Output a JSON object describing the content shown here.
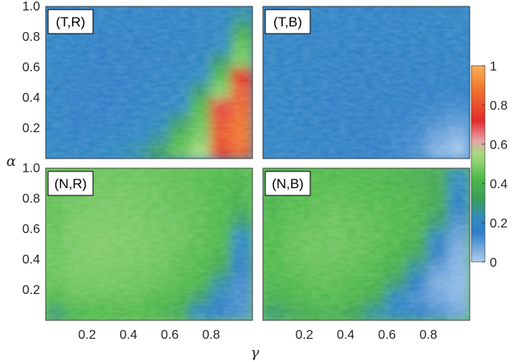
{
  "chart_data": {
    "type": "heatmap",
    "xlabel": "γ",
    "ylabel": "α",
    "x_ticks": [
      "0.2",
      "0.4",
      "0.6",
      "0.8"
    ],
    "y_ticks": [
      "0.2",
      "0.4",
      "0.6",
      "0.8",
      "1.0"
    ],
    "xlim": [
      0,
      1
    ],
    "ylim": [
      0,
      1
    ],
    "colorbar": {
      "range": [
        0,
        1
      ],
      "ticks": [
        "0",
        "0.2",
        "0.4",
        "0.6",
        "0.8",
        "1"
      ],
      "colors": [
        "#aecdf0",
        "#2f7fc6",
        "#2f8ac0",
        "#3a9e5a",
        "#4db848",
        "#a8dc82",
        "#e8a0a8",
        "#e22a2a",
        "#f08030",
        "#f7b060"
      ]
    },
    "panels": [
      {
        "label": "(T,R)",
        "description": "mostly ~0.15-0.2; ridge from gamma≈0.6 (alpha 0) to gamma≈0.95 (alpha 0.85) with values 0.4-0.5, rising to 0.8-0.9 near gamma 0.85-1.0, alpha<0.5",
        "grid": [
          [
            0.2,
            0.18,
            0.2,
            0.22,
            0.25,
            0.32,
            0.45,
            0.55,
            0.75,
            0.85
          ],
          [
            0.18,
            0.15,
            0.17,
            0.18,
            0.2,
            0.25,
            0.4,
            0.48,
            0.82,
            0.88
          ],
          [
            0.18,
            0.15,
            0.15,
            0.17,
            0.18,
            0.22,
            0.3,
            0.45,
            0.8,
            0.87
          ],
          [
            0.18,
            0.15,
            0.15,
            0.15,
            0.17,
            0.2,
            0.22,
            0.42,
            0.7,
            0.85
          ],
          [
            0.17,
            0.15,
            0.15,
            0.15,
            0.16,
            0.18,
            0.2,
            0.3,
            0.5,
            0.82
          ],
          [
            0.17,
            0.15,
            0.15,
            0.15,
            0.15,
            0.17,
            0.18,
            0.22,
            0.42,
            0.72
          ],
          [
            0.17,
            0.16,
            0.15,
            0.15,
            0.15,
            0.16,
            0.17,
            0.2,
            0.3,
            0.48
          ],
          [
            0.18,
            0.16,
            0.15,
            0.15,
            0.15,
            0.16,
            0.17,
            0.18,
            0.22,
            0.45
          ],
          [
            0.18,
            0.17,
            0.16,
            0.16,
            0.16,
            0.16,
            0.17,
            0.18,
            0.2,
            0.35
          ],
          [
            0.18,
            0.18,
            0.17,
            0.17,
            0.17,
            0.17,
            0.17,
            0.18,
            0.2,
            0.25
          ]
        ]
      },
      {
        "label": "(T,B)",
        "description": "uniform ~0.15-0.2, lighter ~0.05 toward lower-right corner",
        "grid": [
          [
            0.18,
            0.17,
            0.17,
            0.16,
            0.16,
            0.15,
            0.14,
            0.12,
            0.05,
            0.02
          ],
          [
            0.18,
            0.17,
            0.16,
            0.16,
            0.15,
            0.15,
            0.14,
            0.13,
            0.08,
            0.05
          ],
          [
            0.18,
            0.17,
            0.16,
            0.15,
            0.15,
            0.15,
            0.15,
            0.14,
            0.12,
            0.1
          ],
          [
            0.18,
            0.17,
            0.16,
            0.15,
            0.15,
            0.15,
            0.15,
            0.15,
            0.14,
            0.13
          ],
          [
            0.18,
            0.17,
            0.16,
            0.15,
            0.15,
            0.15,
            0.15,
            0.15,
            0.15,
            0.15
          ],
          [
            0.18,
            0.17,
            0.16,
            0.15,
            0.15,
            0.15,
            0.15,
            0.15,
            0.16,
            0.16
          ],
          [
            0.18,
            0.17,
            0.16,
            0.16,
            0.15,
            0.15,
            0.15,
            0.16,
            0.16,
            0.17
          ],
          [
            0.18,
            0.17,
            0.17,
            0.16,
            0.16,
            0.16,
            0.16,
            0.16,
            0.17,
            0.17
          ],
          [
            0.18,
            0.18,
            0.17,
            0.17,
            0.16,
            0.16,
            0.16,
            0.17,
            0.17,
            0.18
          ],
          [
            0.18,
            0.18,
            0.18,
            0.17,
            0.17,
            0.17,
            0.17,
            0.17,
            0.18,
            0.18
          ]
        ]
      },
      {
        "label": "(N,R)",
        "description": "mostly ~0.4-0.5 green; blue ~0.15 region in lower-right corner for gamma>0.8",
        "grid": [
          [
            0.3,
            0.4,
            0.42,
            0.42,
            0.42,
            0.4,
            0.35,
            0.18,
            0.15,
            0.12
          ],
          [
            0.42,
            0.45,
            0.45,
            0.45,
            0.45,
            0.42,
            0.4,
            0.3,
            0.18,
            0.12
          ],
          [
            0.45,
            0.47,
            0.47,
            0.47,
            0.46,
            0.45,
            0.43,
            0.4,
            0.25,
            0.13
          ],
          [
            0.46,
            0.48,
            0.48,
            0.48,
            0.47,
            0.46,
            0.44,
            0.42,
            0.35,
            0.15
          ],
          [
            0.46,
            0.48,
            0.49,
            0.48,
            0.48,
            0.47,
            0.45,
            0.43,
            0.4,
            0.18
          ],
          [
            0.46,
            0.48,
            0.49,
            0.49,
            0.48,
            0.47,
            0.46,
            0.44,
            0.42,
            0.22
          ],
          [
            0.45,
            0.48,
            0.48,
            0.48,
            0.48,
            0.47,
            0.46,
            0.44,
            0.42,
            0.3
          ],
          [
            0.45,
            0.47,
            0.48,
            0.48,
            0.47,
            0.46,
            0.45,
            0.44,
            0.42,
            0.38
          ],
          [
            0.45,
            0.46,
            0.47,
            0.47,
            0.47,
            0.46,
            0.45,
            0.44,
            0.42,
            0.4
          ],
          [
            0.44,
            0.45,
            0.46,
            0.46,
            0.46,
            0.45,
            0.44,
            0.43,
            0.42,
            0.4
          ]
        ]
      },
      {
        "label": "(N,B)",
        "description": "mostly ~0.4 green with light patches; blue ~0.1-0.2 region for gamma>0.6 at low alpha, extending along right side",
        "grid": [
          [
            0.3,
            0.35,
            0.38,
            0.38,
            0.32,
            0.25,
            0.18,
            0.15,
            0.12,
            0.08
          ],
          [
            0.38,
            0.4,
            0.42,
            0.42,
            0.4,
            0.35,
            0.2,
            0.12,
            0.08,
            0.05
          ],
          [
            0.4,
            0.42,
            0.44,
            0.44,
            0.42,
            0.4,
            0.3,
            0.15,
            0.06,
            0.04
          ],
          [
            0.42,
            0.44,
            0.45,
            0.45,
            0.44,
            0.42,
            0.38,
            0.25,
            0.1,
            0.05
          ],
          [
            0.42,
            0.45,
            0.46,
            0.46,
            0.45,
            0.43,
            0.4,
            0.35,
            0.15,
            0.06
          ],
          [
            0.42,
            0.45,
            0.46,
            0.46,
            0.45,
            0.44,
            0.42,
            0.38,
            0.2,
            0.08
          ],
          [
            0.42,
            0.44,
            0.45,
            0.46,
            0.45,
            0.44,
            0.42,
            0.4,
            0.3,
            0.12
          ],
          [
            0.4,
            0.43,
            0.44,
            0.45,
            0.44,
            0.43,
            0.42,
            0.4,
            0.35,
            0.15
          ],
          [
            0.4,
            0.42,
            0.43,
            0.44,
            0.43,
            0.42,
            0.41,
            0.4,
            0.36,
            0.2
          ],
          [
            0.38,
            0.4,
            0.42,
            0.42,
            0.42,
            0.41,
            0.4,
            0.38,
            0.35,
            0.22
          ]
        ]
      }
    ]
  }
}
